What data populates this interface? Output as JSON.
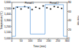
{
  "chart_data": {
    "type": "scatter",
    "x_label": "Time (min)",
    "y_label": "Temperature (°C)",
    "y2_label": "Flow rate",
    "xlim": [
      0,
      300
    ],
    "xticks": [
      0,
      50,
      100,
      150,
      200,
      250,
      300
    ],
    "ylim": [
      1000,
      1600
    ],
    "yticks": [
      {
        "value": 1000,
        "label": "1,000"
      },
      {
        "value": 1100,
        "label": "1,100"
      },
      {
        "value": 1200,
        "label": "1,200"
      },
      {
        "value": 1300,
        "label": "1,300"
      },
      {
        "value": 1400,
        "label": "1,400"
      },
      {
        "value": 1500,
        "label": "1,500"
      },
      {
        "value": 1600,
        "label": "1,600"
      }
    ],
    "y2lim": [
      0,
      80
    ],
    "y2ticks": [
      0,
      20,
      40,
      60,
      80
    ],
    "annotations": [
      {
        "text": "Period 1",
        "x": 95,
        "y": 1575
      },
      {
        "text": "Period 2",
        "x": 230,
        "y": 1575
      }
    ],
    "series": [
      {
        "type": "scatter",
        "color": "#000000",
        "marker": "diamond",
        "x": [
          10,
          30,
          50,
          70,
          90,
          110,
          130,
          150,
          170,
          190,
          210,
          230,
          250,
          270
        ],
        "values": [
          1500,
          1520,
          1490,
          1530,
          1510,
          1480,
          1520,
          1500,
          1540,
          1510,
          1490,
          1530,
          1520,
          1500
        ]
      },
      {
        "type": "line",
        "color": "#4a90d9",
        "axis": "y2",
        "line_style": "solid",
        "x": [
          0,
          20,
          20,
          100,
          100,
          180,
          180,
          280,
          280,
          300
        ],
        "values": [
          5,
          5,
          70,
          70,
          10,
          10,
          75,
          75,
          5,
          5
        ]
      }
    ]
  }
}
